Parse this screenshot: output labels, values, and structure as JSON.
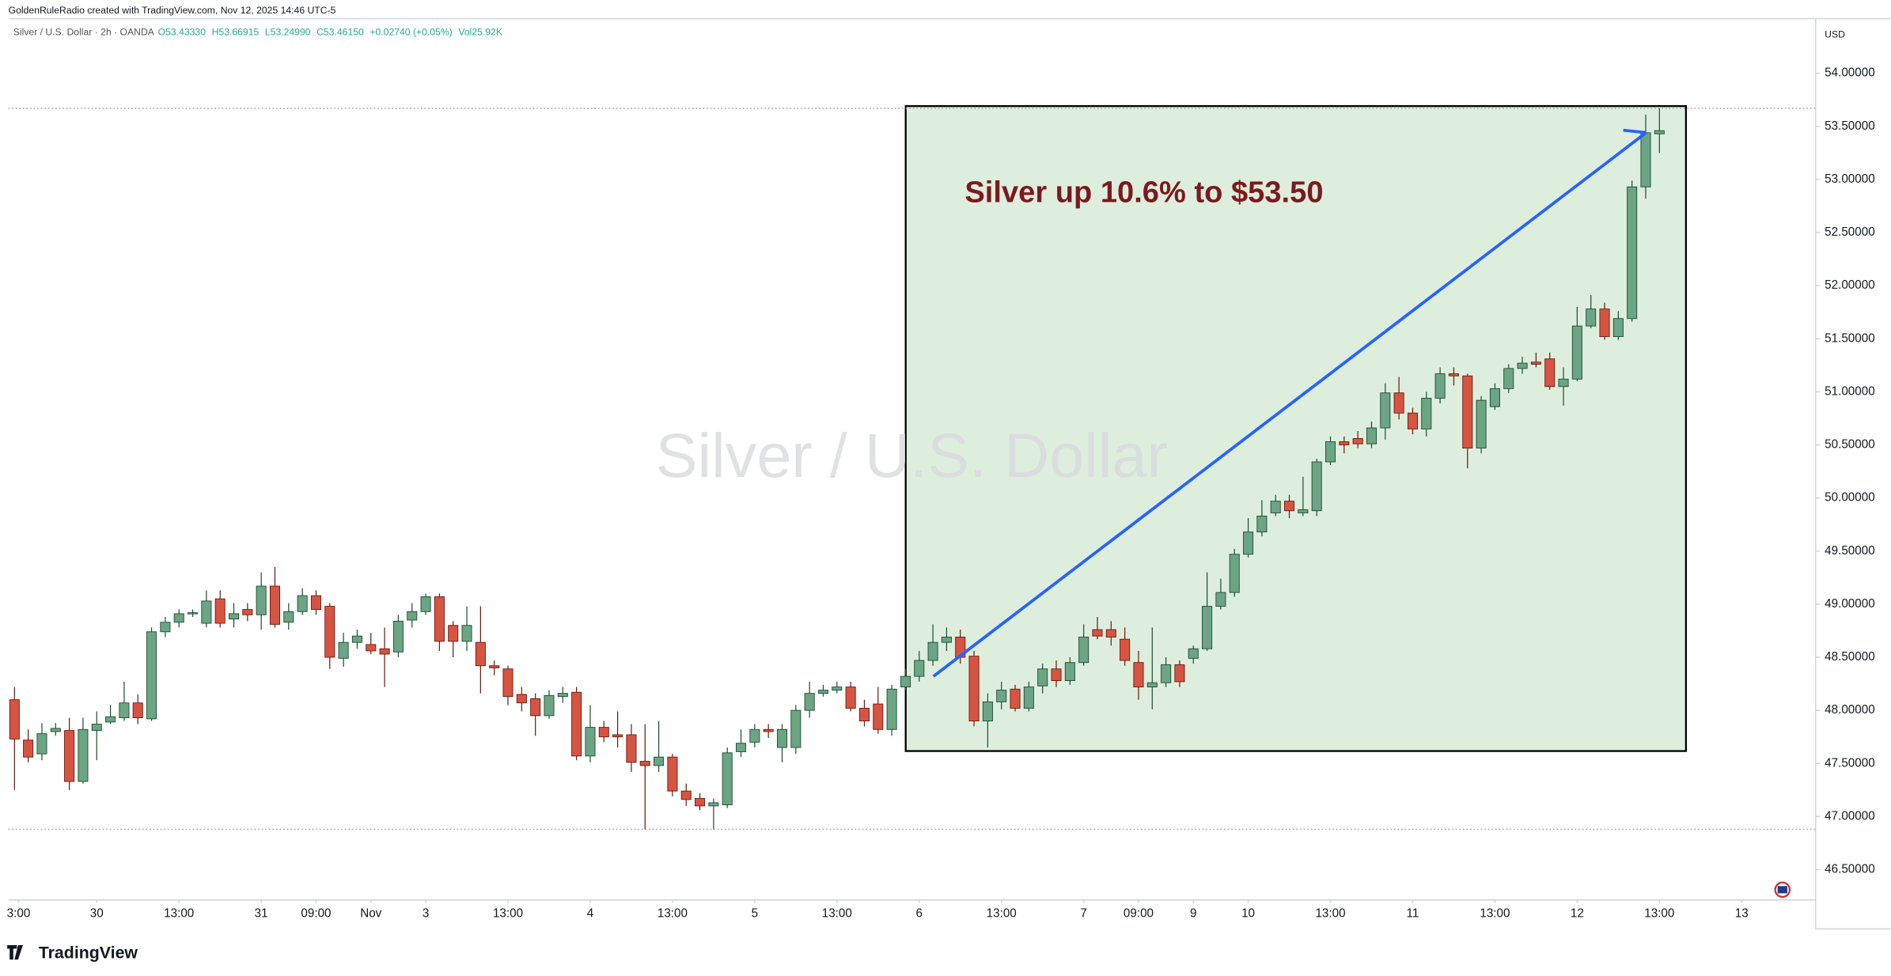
{
  "header": {
    "credit": "GoldenRuleRadio created with TradingView.com, Nov 12, 2025 14:46 UTC-5",
    "symbol": "Silver / U.S. Dollar · 2h · OANDA",
    "ohlc": [
      "O53.43330",
      "H53.66915",
      "L53.24990",
      "C53.46150",
      "+0.02740 (+0.05%)",
      "Vol25.92K"
    ]
  },
  "footer": {
    "brand": "TradingView"
  },
  "chart_data": {
    "type": "candlestick",
    "watermark": "Silver / U.S. Dollar",
    "currency": "USD",
    "annotation": "Silver up 10.6% to $53.50",
    "up_color": "#6ba583",
    "down_color": "#d75442",
    "open": [
      48.1,
      47.72,
      47.59,
      47.8,
      47.81,
      47.33,
      47.81,
      47.89,
      47.93,
      48.07,
      47.92,
      48.74,
      48.83,
      48.92,
      48.82,
      49.05,
      48.86,
      48.95,
      48.9,
      49.17,
      48.83,
      48.93,
      49.08,
      48.98,
      48.49,
      48.64,
      48.62,
      48.58,
      48.55,
      48.85,
      48.93,
      49.07,
      48.8,
      48.65,
      48.64,
      48.42,
      48.39,
      48.15,
      48.11,
      47.95,
      48.13,
      48.17,
      47.57,
      47.84,
      47.77,
      47.77,
      47.52,
      47.48,
      47.56,
      47.24,
      47.17,
      47.1,
      47.11,
      47.61,
      47.7,
      47.82,
      47.65,
      47.65,
      48.0,
      48.16,
      48.19,
      48.22,
      48.02,
      48.06,
      47.82,
      48.22,
      48.32,
      48.47,
      48.64,
      48.69,
      48.51,
      47.9,
      48.08,
      48.2,
      48.02,
      48.23,
      48.39,
      48.28,
      48.45,
      48.76,
      48.76,
      48.67,
      48.45,
      48.22,
      48.26,
      48.43,
      48.49,
      48.58,
      48.98,
      49.11,
      49.47,
      49.68,
      49.86,
      49.97,
      49.86,
      49.88,
      50.34,
      50.53,
      50.56,
      50.51,
      50.66,
      50.99,
      50.8,
      50.65,
      50.94,
      51.17,
      51.15,
      50.47,
      50.86,
      51.03,
      51.22,
      51.28,
      51.31,
      51.05,
      51.12,
      51.62,
      51.78,
      51.52,
      51.69,
      52.93,
      53.43
    ],
    "high": [
      48.22,
      47.82,
      47.88,
      47.88,
      47.93,
      47.93,
      47.99,
      48.05,
      48.27,
      48.15,
      48.78,
      48.88,
      48.95,
      48.95,
      49.13,
      49.13,
      49.01,
      49.01,
      49.3,
      49.35,
      49.01,
      49.15,
      49.13,
      49.01,
      48.73,
      48.76,
      48.73,
      48.78,
      48.9,
      49.01,
      49.1,
      49.1,
      48.84,
      48.98,
      48.98,
      48.47,
      48.42,
      48.22,
      48.16,
      48.19,
      48.22,
      48.22,
      48.05,
      47.9,
      47.99,
      47.87,
      47.87,
      47.9,
      47.59,
      47.31,
      47.22,
      47.17,
      47.65,
      47.82,
      47.87,
      47.87,
      47.87,
      48.05,
      48.27,
      48.24,
      48.27,
      48.27,
      48.1,
      48.22,
      48.24,
      48.39,
      48.56,
      48.81,
      48.78,
      48.76,
      48.56,
      48.16,
      48.27,
      48.24,
      48.27,
      48.44,
      48.47,
      48.5,
      48.81,
      48.88,
      48.84,
      48.78,
      48.56,
      48.78,
      48.5,
      48.47,
      48.61,
      49.3,
      49.24,
      49.52,
      49.81,
      49.98,
      50.03,
      50.03,
      50.2,
      50.37,
      50.58,
      50.58,
      50.63,
      50.72,
      51.08,
      51.14,
      50.85,
      51.0,
      51.23,
      51.23,
      51.17,
      50.96,
      51.08,
      51.26,
      51.33,
      51.37,
      51.37,
      51.23,
      51.8,
      51.91,
      51.84,
      51.76,
      52.99,
      53.61,
      53.67
    ],
    "low": [
      47.25,
      47.51,
      47.53,
      47.76,
      47.25,
      47.31,
      47.53,
      47.87,
      47.9,
      47.87,
      47.9,
      48.69,
      48.78,
      48.88,
      48.78,
      48.78,
      48.78,
      48.84,
      48.76,
      48.78,
      48.76,
      48.9,
      48.9,
      48.39,
      48.41,
      48.58,
      48.53,
      48.22,
      48.5,
      48.78,
      48.9,
      48.56,
      48.5,
      48.56,
      48.16,
      48.33,
      48.05,
      47.99,
      47.76,
      47.92,
      48.07,
      47.53,
      47.51,
      47.7,
      47.65,
      47.42,
      46.88,
      47.42,
      47.19,
      47.1,
      47.06,
      46.88,
      47.08,
      47.56,
      47.65,
      47.74,
      47.51,
      47.59,
      47.93,
      48.13,
      48.16,
      47.99,
      47.85,
      47.78,
      47.76,
      48.19,
      48.27,
      48.42,
      48.56,
      48.44,
      47.85,
      47.65,
      48.01,
      47.99,
      47.99,
      48.16,
      48.22,
      48.24,
      48.42,
      48.67,
      48.61,
      48.42,
      48.1,
      48.01,
      48.22,
      48.22,
      48.44,
      48.56,
      48.95,
      49.07,
      49.44,
      49.64,
      49.83,
      49.81,
      49.83,
      49.83,
      50.31,
      50.42,
      50.47,
      50.47,
      50.55,
      50.74,
      50.6,
      50.58,
      50.89,
      51.06,
      50.28,
      50.42,
      50.83,
      50.99,
      51.17,
      51.23,
      51.02,
      50.87,
      51.1,
      51.6,
      51.49,
      51.49,
      51.66,
      52.82,
      53.25
    ],
    "close": [
      47.73,
      47.56,
      47.78,
      47.83,
      47.33,
      47.82,
      47.87,
      47.94,
      48.07,
      47.93,
      48.74,
      48.83,
      48.91,
      48.92,
      49.03,
      48.82,
      48.91,
      48.9,
      49.17,
      48.81,
      48.93,
      49.08,
      48.95,
      48.5,
      48.64,
      48.7,
      48.56,
      48.53,
      48.84,
      48.93,
      49.07,
      48.65,
      48.65,
      48.8,
      48.42,
      48.4,
      48.13,
      48.07,
      47.95,
      48.14,
      48.16,
      47.57,
      47.84,
      47.75,
      47.75,
      47.51,
      47.48,
      47.56,
      47.24,
      47.16,
      47.1,
      47.13,
      47.6,
      47.69,
      47.82,
      47.8,
      47.82,
      48.0,
      48.16,
      48.19,
      48.22,
      48.02,
      47.9,
      47.82,
      48.2,
      48.32,
      48.47,
      48.64,
      48.69,
      48.5,
      47.9,
      48.08,
      48.19,
      48.02,
      48.22,
      48.39,
      48.28,
      48.45,
      48.69,
      48.7,
      48.69,
      48.47,
      48.22,
      48.26,
      48.43,
      48.27,
      48.58,
      48.98,
      49.11,
      49.47,
      49.68,
      49.83,
      49.97,
      49.88,
      49.89,
      50.34,
      50.53,
      50.5,
      50.51,
      50.66,
      50.99,
      50.8,
      50.65,
      50.94,
      51.17,
      51.15,
      50.47,
      50.92,
      51.03,
      51.22,
      51.27,
      51.26,
      51.05,
      51.12,
      51.62,
      51.78,
      51.52,
      51.69,
      52.93,
      53.44,
      53.46
    ],
    "hlines": [
      53.67,
      46.88
    ],
    "xlim": [
      -0.44,
      131.35
    ],
    "xticks": [
      {
        "value": 0.3,
        "label": "3:00"
      },
      {
        "value": 6,
        "label": "30"
      },
      {
        "value": 12,
        "label": "13:00"
      },
      {
        "value": 18,
        "label": "31"
      },
      {
        "value": 22,
        "label": "09:00"
      },
      {
        "value": 26,
        "label": "Nov"
      },
      {
        "value": 30,
        "label": "3"
      },
      {
        "value": 36,
        "label": "13:00"
      },
      {
        "value": 42,
        "label": "4"
      },
      {
        "value": 48,
        "label": "13:00"
      },
      {
        "value": 54,
        "label": "5"
      },
      {
        "value": 60,
        "label": "13:00"
      },
      {
        "value": 66,
        "label": "6"
      },
      {
        "value": 72,
        "label": "13:00"
      },
      {
        "value": 78,
        "label": "7"
      },
      {
        "value": 82,
        "label": "09:00"
      },
      {
        "value": 86,
        "label": "9"
      },
      {
        "value": 90,
        "label": "10"
      },
      {
        "value": 96,
        "label": "13:00"
      },
      {
        "value": 102,
        "label": "11"
      },
      {
        "value": 108,
        "label": "13:00"
      },
      {
        "value": 114,
        "label": "12"
      },
      {
        "value": 120,
        "label": "13:00"
      },
      {
        "value": 126,
        "label": "13"
      }
    ],
    "ylim": [
      46.22,
      54.52
    ],
    "yticks": [
      {
        "value": 46.5,
        "label": "46.50000"
      },
      {
        "value": 47,
        "label": "47.00000"
      },
      {
        "value": 47.5,
        "label": "47.50000"
      },
      {
        "value": 48,
        "label": "48.00000"
      },
      {
        "value": 48.5,
        "label": "48.50000"
      },
      {
        "value": 49,
        "label": "49.00000"
      },
      {
        "value": 49.5,
        "label": "49.50000"
      },
      {
        "value": 50,
        "label": "50.00000"
      },
      {
        "value": 50.5,
        "label": "50.50000"
      },
      {
        "value": 51,
        "label": "51.00000"
      },
      {
        "value": 51.5,
        "label": "51.50000"
      },
      {
        "value": 52,
        "label": "52.00000"
      },
      {
        "value": 52.5,
        "label": "52.50000"
      },
      {
        "value": 53,
        "label": "53.00000"
      },
      {
        "value": 53.5,
        "label": "53.50000"
      },
      {
        "value": 54,
        "label": "54.00000"
      }
    ]
  }
}
